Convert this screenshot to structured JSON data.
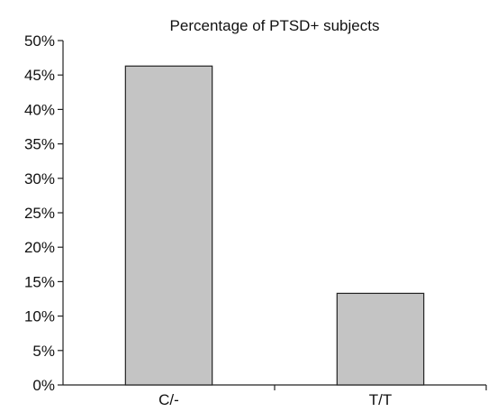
{
  "chart_data": {
    "type": "bar",
    "title": "Percentage of PTSD+ subjects",
    "categories": [
      "C/-",
      "T/T"
    ],
    "values": [
      46.3,
      13.3
    ],
    "ylim": [
      0,
      50
    ],
    "y_ticks": [
      "0%",
      "5%",
      "10%",
      "15%",
      "20%",
      "25%",
      "30%",
      "35%",
      "40%",
      "45%",
      "50%"
    ],
    "xlabel": "",
    "ylabel": "",
    "grid": false,
    "colors": {
      "bar_fill": "#c4c4c4",
      "bar_stroke": "#222222"
    }
  }
}
